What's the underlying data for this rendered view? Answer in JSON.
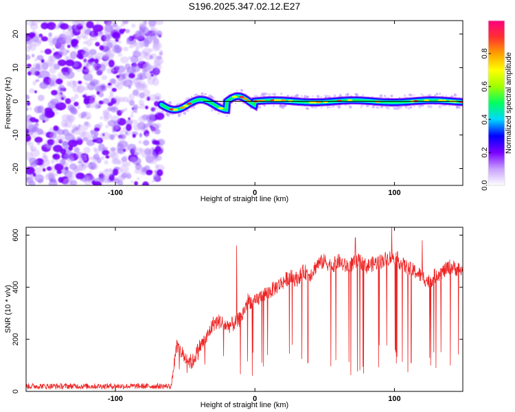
{
  "title": "S196.2025.347.02.12.E27",
  "chart_data": [
    {
      "type": "heatmap",
      "name": "spectrogram",
      "xlabel": "Height of straight line (km)",
      "ylabel": "Frequency (Hz)",
      "xlim": [
        -164,
        149
      ],
      "ylim": [
        -25,
        24
      ],
      "xticks": [
        -100,
        0,
        100
      ],
      "xtick_labels": [
        "-100",
        "0",
        "100"
      ],
      "yticks": [
        -20,
        -10,
        0,
        10,
        20
      ],
      "ytick_labels": [
        "-20",
        "-10",
        "0",
        "10",
        "20"
      ],
      "noise_region_x": [
        -164,
        -67
      ],
      "signal_region_x": [
        -67,
        149
      ],
      "signal_frequency_hz": 0,
      "reference_line_y": 0,
      "colorbar": {
        "label": "Normalized spectral amplitude",
        "range": [
          0,
          1
        ],
        "ticks": [
          0.0,
          0.2,
          0.4,
          0.6,
          0.8
        ],
        "tick_labels": [
          "0.0",
          "0.2",
          "0.4",
          "0.6",
          "0.8"
        ],
        "colors": [
          "#ffffff",
          "#c8a0ff",
          "#7a00ff",
          "#0000ff",
          "#00d8ff",
          "#00ff60",
          "#a0ff00",
          "#ffff00",
          "#ffa000",
          "#ff3030",
          "#ff0080"
        ]
      }
    },
    {
      "type": "line",
      "name": "snr",
      "xlabel": "Height of straight line (km)",
      "ylabel": "SNR (10 * v/v)",
      "xlim": [
        -164,
        149
      ],
      "ylim": [
        0,
        630
      ],
      "xticks": [
        -100,
        0,
        100
      ],
      "xtick_labels": [
        "-100",
        "0",
        "100"
      ],
      "yticks": [
        0,
        200,
        400,
        600
      ],
      "ytick_labels": [
        "0",
        "200",
        "400",
        "600"
      ],
      "color": "#ee2222",
      "profile_x": [
        -164,
        -60,
        -56,
        -50,
        -45,
        -40,
        -35,
        -30,
        -25,
        -20,
        -15,
        -10,
        -5,
        0,
        5,
        10,
        15,
        20,
        25,
        30,
        35,
        40,
        45,
        50,
        55,
        60,
        65,
        70,
        75,
        80,
        85,
        90,
        95,
        100,
        105,
        110,
        115,
        120,
        125,
        130,
        135,
        140,
        145,
        149
      ],
      "profile_y": [
        20,
        20,
        170,
        130,
        110,
        170,
        200,
        260,
        270,
        250,
        260,
        280,
        350,
        340,
        370,
        380,
        400,
        420,
        440,
        430,
        460,
        450,
        490,
        500,
        480,
        500,
        480,
        490,
        500,
        480,
        490,
        500,
        510,
        520,
        490,
        470,
        460,
        440,
        420,
        450,
        460,
        480,
        470,
        460
      ],
      "spikes": [
        {
          "x": -13,
          "y": 560
        },
        {
          "x": 98,
          "y": 630
        },
        {
          "x": 72,
          "y": 590
        },
        {
          "x": 120,
          "y": 580
        }
      ],
      "dropouts": [
        {
          "x": -2,
          "y": 60
        },
        {
          "x": 5,
          "y": 110
        },
        {
          "x": 38,
          "y": 110
        },
        {
          "x": 58,
          "y": 120
        },
        {
          "x": 112,
          "y": 110
        },
        {
          "x": 126,
          "y": 100
        },
        {
          "x": 140,
          "y": 100
        }
      ]
    }
  ]
}
